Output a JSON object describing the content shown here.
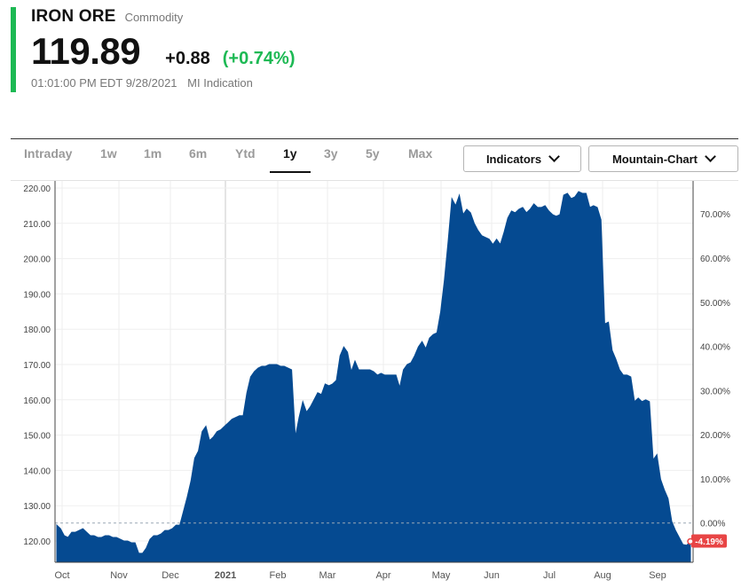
{
  "quote": {
    "name": "IRON ORE",
    "type": "Commodity",
    "price": "119.89",
    "change": "+0.88",
    "change_pct": "(+0.74%)",
    "timestamp": "01:01:00 PM EDT 9/28/2021",
    "source": "MI Indication"
  },
  "colors": {
    "accent": "#1db954",
    "area": "#054a91",
    "negative_badge": "#e84545",
    "positive_text": "#1db954"
  },
  "toolbar": {
    "ranges": [
      "Intraday",
      "1w",
      "1m",
      "6m",
      "Ytd",
      "1y",
      "3y",
      "5y",
      "Max"
    ],
    "active_range": "1y",
    "indicators_label": "Indicators",
    "chart_type_label": "Mountain-Chart"
  },
  "chart_data": {
    "type": "area",
    "x_tick_labels": [
      "Oct",
      "Nov",
      "Dec",
      "2021",
      "Feb",
      "Mar",
      "Apr",
      "May",
      "Jun",
      "Jul",
      "Aug",
      "Sep"
    ],
    "y_tick_labels": [
      "220.00",
      "210.00",
      "200.00",
      "190.00",
      "180.00",
      "170.00",
      "160.00",
      "150.00",
      "140.00",
      "130.00",
      "120.00"
    ],
    "y2_tick_labels": [
      "70.00%",
      "60.00%",
      "50.00%",
      "40.00%",
      "30.00%",
      "20.00%",
      "10.00%",
      "0.00%"
    ],
    "ylim": [
      114,
      221
    ],
    "baseline": 125.1,
    "last_change_label": "-4.19%",
    "series": [
      {
        "values": [
          [
            0,
            124.5
          ],
          [
            1,
            123.5
          ],
          [
            2,
            121.5
          ],
          [
            3,
            121
          ],
          [
            4,
            122.5
          ],
          [
            5,
            122.5
          ],
          [
            6,
            123
          ],
          [
            7,
            123.5
          ],
          [
            8,
            122.5
          ],
          [
            9,
            121.5
          ],
          [
            10,
            121.5
          ],
          [
            11,
            121
          ],
          [
            12,
            121
          ],
          [
            13,
            121.5
          ],
          [
            14,
            121.5
          ],
          [
            15,
            121
          ],
          [
            16,
            121
          ],
          [
            17,
            120.5
          ],
          [
            18,
            120
          ],
          [
            19,
            120
          ],
          [
            20,
            119.5
          ],
          [
            21,
            119.5
          ],
          [
            22,
            116.5
          ],
          [
            23,
            116.5
          ],
          [
            24,
            118
          ],
          [
            25,
            120.5
          ],
          [
            26,
            121.5
          ],
          [
            27,
            121.5
          ],
          [
            28,
            122
          ],
          [
            29,
            123
          ],
          [
            30,
            123
          ],
          [
            31,
            123.5
          ],
          [
            32,
            124.5
          ],
          [
            33,
            124.5
          ],
          [
            34,
            128.5
          ],
          [
            35,
            132.5
          ],
          [
            36,
            137
          ],
          [
            37,
            143.5
          ],
          [
            38,
            145.5
          ],
          [
            39,
            151
          ],
          [
            40,
            152.5
          ],
          [
            41,
            148.5
          ],
          [
            42,
            149.5
          ],
          [
            43,
            151
          ],
          [
            44,
            151.5
          ],
          [
            45,
            152.5
          ],
          [
            46,
            153.5
          ],
          [
            47,
            154.5
          ],
          [
            48,
            155
          ],
          [
            49,
            155.5
          ],
          [
            50,
            155.5
          ],
          [
            51,
            162
          ],
          [
            52,
            166.5
          ],
          [
            53,
            168
          ],
          [
            54,
            169
          ],
          [
            55,
            169.5
          ],
          [
            56,
            169.5
          ],
          [
            57,
            170
          ],
          [
            58,
            170
          ],
          [
            59,
            170
          ],
          [
            60,
            169.5
          ],
          [
            61,
            169.5
          ],
          [
            62,
            169
          ],
          [
            63,
            168.5
          ],
          [
            64,
            149.5
          ],
          [
            65,
            155
          ],
          [
            66,
            159.5
          ],
          [
            67,
            156.5
          ],
          [
            68,
            158
          ],
          [
            69,
            160
          ],
          [
            70,
            162
          ],
          [
            71,
            161.5
          ],
          [
            72,
            164.5
          ],
          [
            73,
            164
          ],
          [
            74,
            164.5
          ],
          [
            75,
            165.5
          ],
          [
            76,
            172.5
          ],
          [
            77,
            175
          ],
          [
            78,
            173.5
          ],
          [
            79,
            168
          ],
          [
            80,
            171
          ],
          [
            81,
            168.5
          ],
          [
            82,
            168.5
          ],
          [
            83,
            168.5
          ],
          [
            84,
            168.5
          ],
          [
            85,
            168
          ],
          [
            86,
            167
          ],
          [
            87,
            167.5
          ],
          [
            88,
            167
          ],
          [
            89,
            167
          ],
          [
            90,
            167
          ],
          [
            91,
            167
          ],
          [
            92,
            163.5
          ],
          [
            93,
            168.5
          ],
          [
            94,
            170
          ],
          [
            95,
            170.5
          ],
          [
            96,
            172.5
          ],
          [
            97,
            175
          ],
          [
            98,
            176.5
          ],
          [
            99,
            174.5
          ],
          [
            100,
            177.5
          ],
          [
            101,
            178.5
          ],
          [
            102,
            179
          ],
          [
            103,
            185
          ],
          [
            104,
            194
          ],
          [
            105,
            205
          ],
          [
            106,
            217
          ],
          [
            107,
            215
          ],
          [
            108,
            218
          ],
          [
            109,
            212.5
          ],
          [
            110,
            214
          ],
          [
            111,
            213
          ],
          [
            112,
            210
          ],
          [
            113,
            208
          ],
          [
            114,
            206.5
          ],
          [
            115,
            206
          ],
          [
            116,
            205.5
          ],
          [
            117,
            204
          ],
          [
            118,
            205.5
          ],
          [
            119,
            204
          ],
          [
            120,
            207.5
          ],
          [
            121,
            211.5
          ],
          [
            122,
            213.5
          ],
          [
            123,
            213
          ],
          [
            124,
            214
          ],
          [
            125,
            214.5
          ],
          [
            126,
            213
          ],
          [
            127,
            214
          ],
          [
            128,
            215.5
          ],
          [
            129,
            214.5
          ],
          [
            130,
            214.5
          ],
          [
            131,
            215
          ],
          [
            132,
            213.5
          ],
          [
            133,
            212.5
          ],
          [
            134,
            212
          ],
          [
            135,
            212.5
          ],
          [
            136,
            218
          ],
          [
            137,
            218.5
          ],
          [
            138,
            217
          ],
          [
            139,
            217.5
          ],
          [
            140,
            219
          ],
          [
            141,
            218.5
          ],
          [
            142,
            218.5
          ],
          [
            143,
            214.5
          ],
          [
            144,
            215
          ],
          [
            145,
            214.5
          ],
          [
            146,
            211
          ],
          [
            147,
            181.5
          ],
          [
            148,
            182
          ],
          [
            149,
            174
          ],
          [
            150,
            171.5
          ],
          [
            151,
            168.5
          ],
          [
            152,
            167
          ],
          [
            153,
            167
          ],
          [
            154,
            166.5
          ],
          [
            155,
            159.5
          ],
          [
            156,
            160.5
          ],
          [
            157,
            159.5
          ],
          [
            158,
            160
          ],
          [
            159,
            159.5
          ],
          [
            160,
            143
          ],
          [
            161,
            144.5
          ],
          [
            162,
            137.5
          ],
          [
            163,
            134.5
          ],
          [
            164,
            132
          ],
          [
            165,
            125.5
          ],
          [
            166,
            123
          ],
          [
            167,
            121
          ],
          [
            168,
            119
          ],
          [
            169,
            118.8
          ],
          [
            170,
            119.89
          ]
        ]
      }
    ]
  }
}
